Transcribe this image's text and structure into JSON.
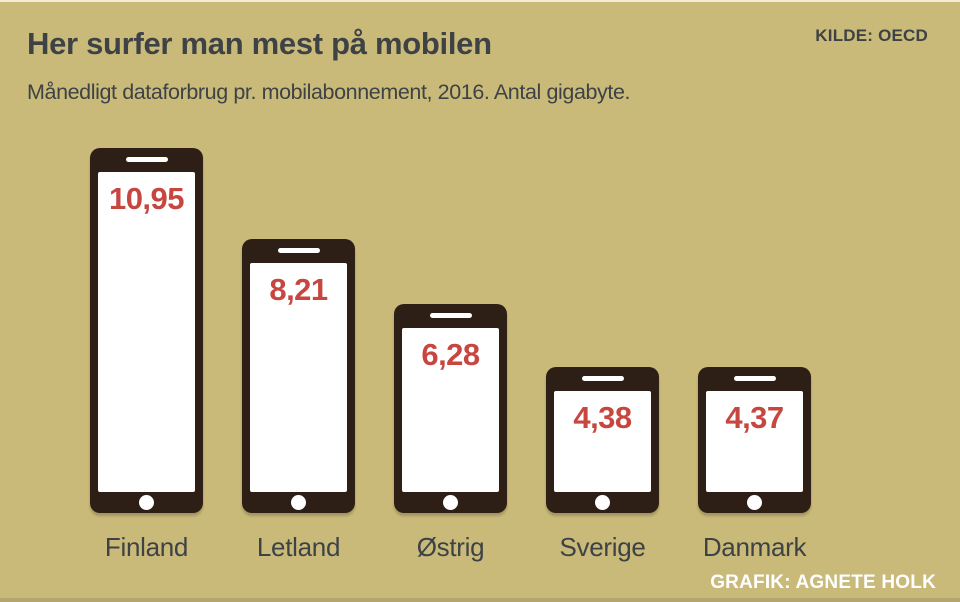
{
  "header": {
    "title": "Her surfer man mest på mobilen",
    "subtitle": "Månedligt dataforbrug pr. mobilabonnement, 2016. Antal gigabyte.",
    "source": "KILDE: OECD"
  },
  "footer": {
    "credit": "GRAFIK: AGNETE HOLK"
  },
  "colors": {
    "background": "#c9ba7a",
    "phone_body": "#2d1e16",
    "phone_screen": "#ffffff",
    "value_red": "#c7463f",
    "text_dark": "#3e4245",
    "credit_white": "#ffffff"
  },
  "chart_data": {
    "type": "bar",
    "title": "Her surfer man mest på mobilen",
    "subtitle": "Månedligt dataforbrug pr. mobilabonnement, 2016. Antal gigabyte.",
    "source": "OECD",
    "unit": "gigabyte pr. måned pr. mobilabonnement (2016)",
    "categories": [
      "Finland",
      "Letland",
      "Østrig",
      "Sverige",
      "Danmark"
    ],
    "values": [
      10.95,
      8.21,
      6.28,
      4.38,
      4.37
    ],
    "value_labels": [
      "10,95",
      "8,21",
      "6,28",
      "4,38",
      "4,37"
    ],
    "ylim": [
      0,
      10.95
    ],
    "grid": false,
    "legend": false,
    "bar_style": "smartphone-pictogram",
    "bar_color": "#2d1e16",
    "value_label_color": "#c7463f"
  }
}
